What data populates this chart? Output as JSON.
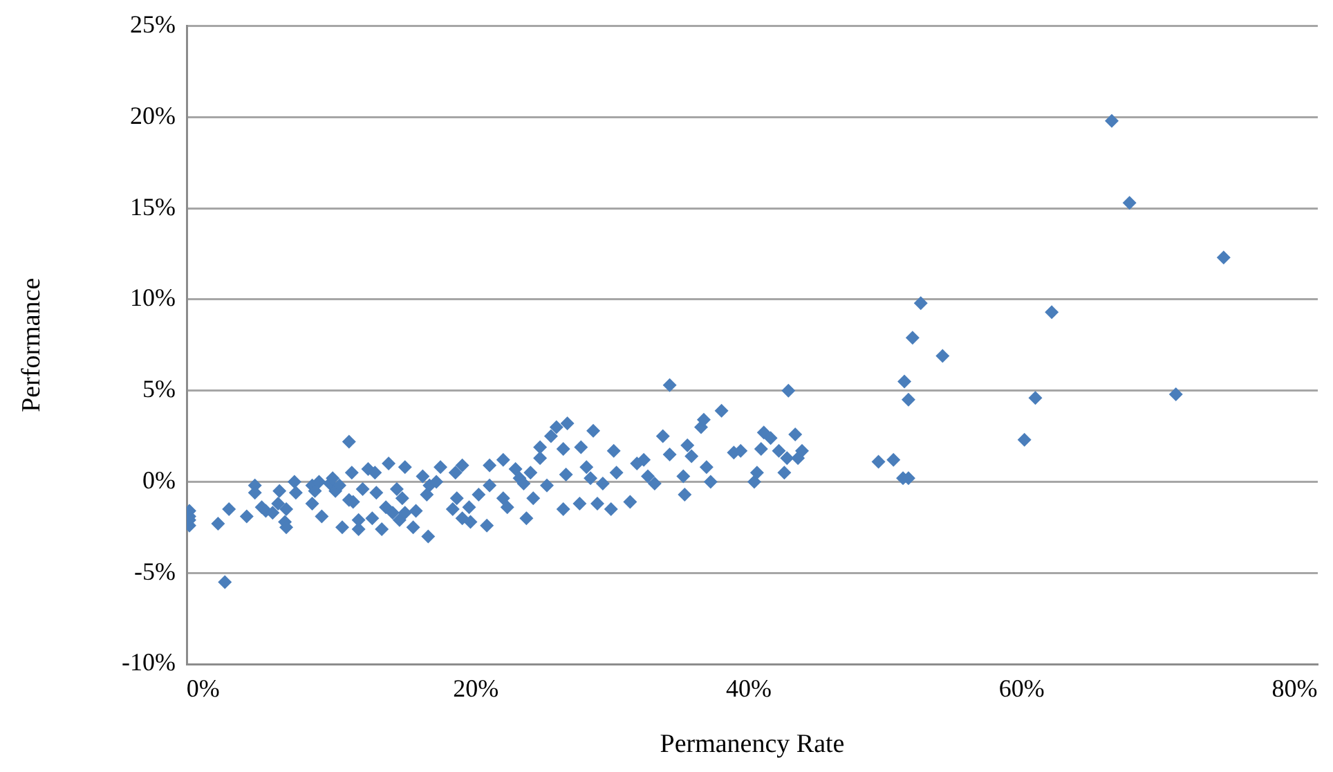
{
  "chart_data": {
    "type": "scatter",
    "xlabel": "Permanency Rate",
    "ylabel": "Performance",
    "xlim": [
      -1.2,
      81.7
    ],
    "ylim": [
      -10,
      25
    ],
    "xticks": [
      {
        "value": 0,
        "label": "0%"
      },
      {
        "value": 20,
        "label": "20%"
      },
      {
        "value": 40,
        "label": "40%"
      },
      {
        "value": 60,
        "label": "60%"
      },
      {
        "value": 80,
        "label": "80%"
      }
    ],
    "yticks": [
      {
        "value": -10,
        "label": "-10%"
      },
      {
        "value": -5,
        "label": "-5%"
      },
      {
        "value": 0,
        "label": "0%"
      },
      {
        "value": 5,
        "label": "5%"
      },
      {
        "value": 10,
        "label": "10%"
      },
      {
        "value": 15,
        "label": "15%"
      },
      {
        "value": 20,
        "label": "20%"
      },
      {
        "value": 25,
        "label": "25%"
      }
    ],
    "grid": "y",
    "legend": false,
    "marker": "diamond",
    "series": [
      {
        "color": "#4a7ebb",
        "x": [
          -1.0,
          -1.0,
          -1.0,
          -1.0,
          1.1,
          1.9,
          1.6,
          3.2,
          3.8,
          3.8,
          4.3,
          4.6,
          5.1,
          5.6,
          5.5,
          6.0,
          6.1,
          6.1,
          6.7,
          6.8,
          8.0,
          8.2,
          8.0,
          8.7,
          8.5,
          9.3,
          9.7,
          10.0,
          9.5,
          10.7,
          10.7,
          11.0,
          10.9,
          10.2,
          11.4,
          11.4,
          11.7,
          12.1,
          12.6,
          12.4,
          12.7,
          13.1,
          13.6,
          13.4,
          13.9,
          14.2,
          14.6,
          14.4,
          14.8,
          14.8,
          15.4,
          15.6,
          16.1,
          16.6,
          17.1,
          16.4,
          16.5,
          17.4,
          18.3,
          18.5,
          18.6,
          19.0,
          19.0,
          19.5,
          19.6,
          20.2,
          20.8,
          21.0,
          21.0,
          22.0,
          22.0,
          22.3,
          22.9,
          23.2,
          23.5,
          23.7,
          24.0,
          24.2,
          24.7,
          24.7,
          25.2,
          25.5,
          25.9,
          26.4,
          26.4,
          26.6,
          26.7,
          27.7,
          27.6,
          28.1,
          28.6,
          28.4,
          28.9,
          29.3,
          29.9,
          30.1,
          30.3,
          31.3,
          31.8,
          32.3,
          32.6,
          33.1,
          33.7,
          34.2,
          34.2,
          35.3,
          35.5,
          35.8,
          35.2,
          36.5,
          36.7,
          36.9,
          37.2,
          38.0,
          38.9,
          39.4,
          40.4,
          40.6,
          40.9,
          41.1,
          41.6,
          42.2,
          42.6,
          42.8,
          42.9,
          43.4,
          43.6,
          43.9,
          49.5,
          50.6,
          51.3,
          51.7,
          51.4,
          51.7,
          52.0,
          52.6,
          54.2,
          66.6,
          67.9,
          74.8,
          62.2,
          61.0,
          60.2,
          71.3
        ],
        "values": [
          -1.6,
          -1.9,
          -2.1,
          -2.4,
          -2.3,
          -1.5,
          -5.5,
          -1.9,
          -0.2,
          -0.6,
          -1.4,
          -1.6,
          -1.7,
          -0.5,
          -1.2,
          -2.2,
          -2.5,
          -1.5,
          0.0,
          -0.6,
          -0.2,
          -0.5,
          -1.2,
          -1.9,
          0.0,
          -0.1,
          -0.5,
          -0.2,
          0.2,
          2.2,
          -1.0,
          -1.1,
          0.5,
          -2.5,
          -2.6,
          -2.1,
          -0.4,
          0.7,
          0.5,
          -2.0,
          -0.6,
          -2.6,
          1.0,
          -1.4,
          -1.7,
          -0.4,
          -0.9,
          -2.1,
          -1.7,
          0.8,
          -2.5,
          -1.6,
          0.3,
          -0.2,
          0.0,
          -0.7,
          -3.0,
          0.8,
          -1.5,
          0.5,
          -0.9,
          0.9,
          -2.0,
          -1.4,
          -2.2,
          -0.7,
          -2.4,
          0.9,
          -0.2,
          1.2,
          -0.9,
          -1.4,
          0.7,
          0.2,
          -0.1,
          -2.0,
          0.5,
          -0.9,
          1.9,
          1.3,
          -0.2,
          2.5,
          3.0,
          -1.5,
          1.8,
          0.4,
          3.2,
          1.9,
          -1.2,
          0.8,
          2.8,
          0.2,
          -1.2,
          -0.1,
          -1.5,
          1.7,
          0.5,
          -1.1,
          1.0,
          1.2,
          0.3,
          -0.1,
          2.5,
          5.3,
          1.5,
          -0.7,
          2.0,
          1.4,
          0.3,
          3.0,
          3.4,
          0.8,
          0.0,
          3.9,
          1.6,
          1.7,
          0.0,
          0.5,
          1.8,
          2.7,
          2.4,
          1.7,
          0.5,
          1.3,
          5.0,
          2.6,
          1.3,
          1.7,
          1.1,
          1.2,
          0.2,
          0.2,
          5.5,
          4.5,
          7.9,
          9.8,
          6.9,
          19.8,
          15.3,
          12.3,
          9.3,
          4.6,
          2.3,
          4.8
        ]
      }
    ]
  }
}
